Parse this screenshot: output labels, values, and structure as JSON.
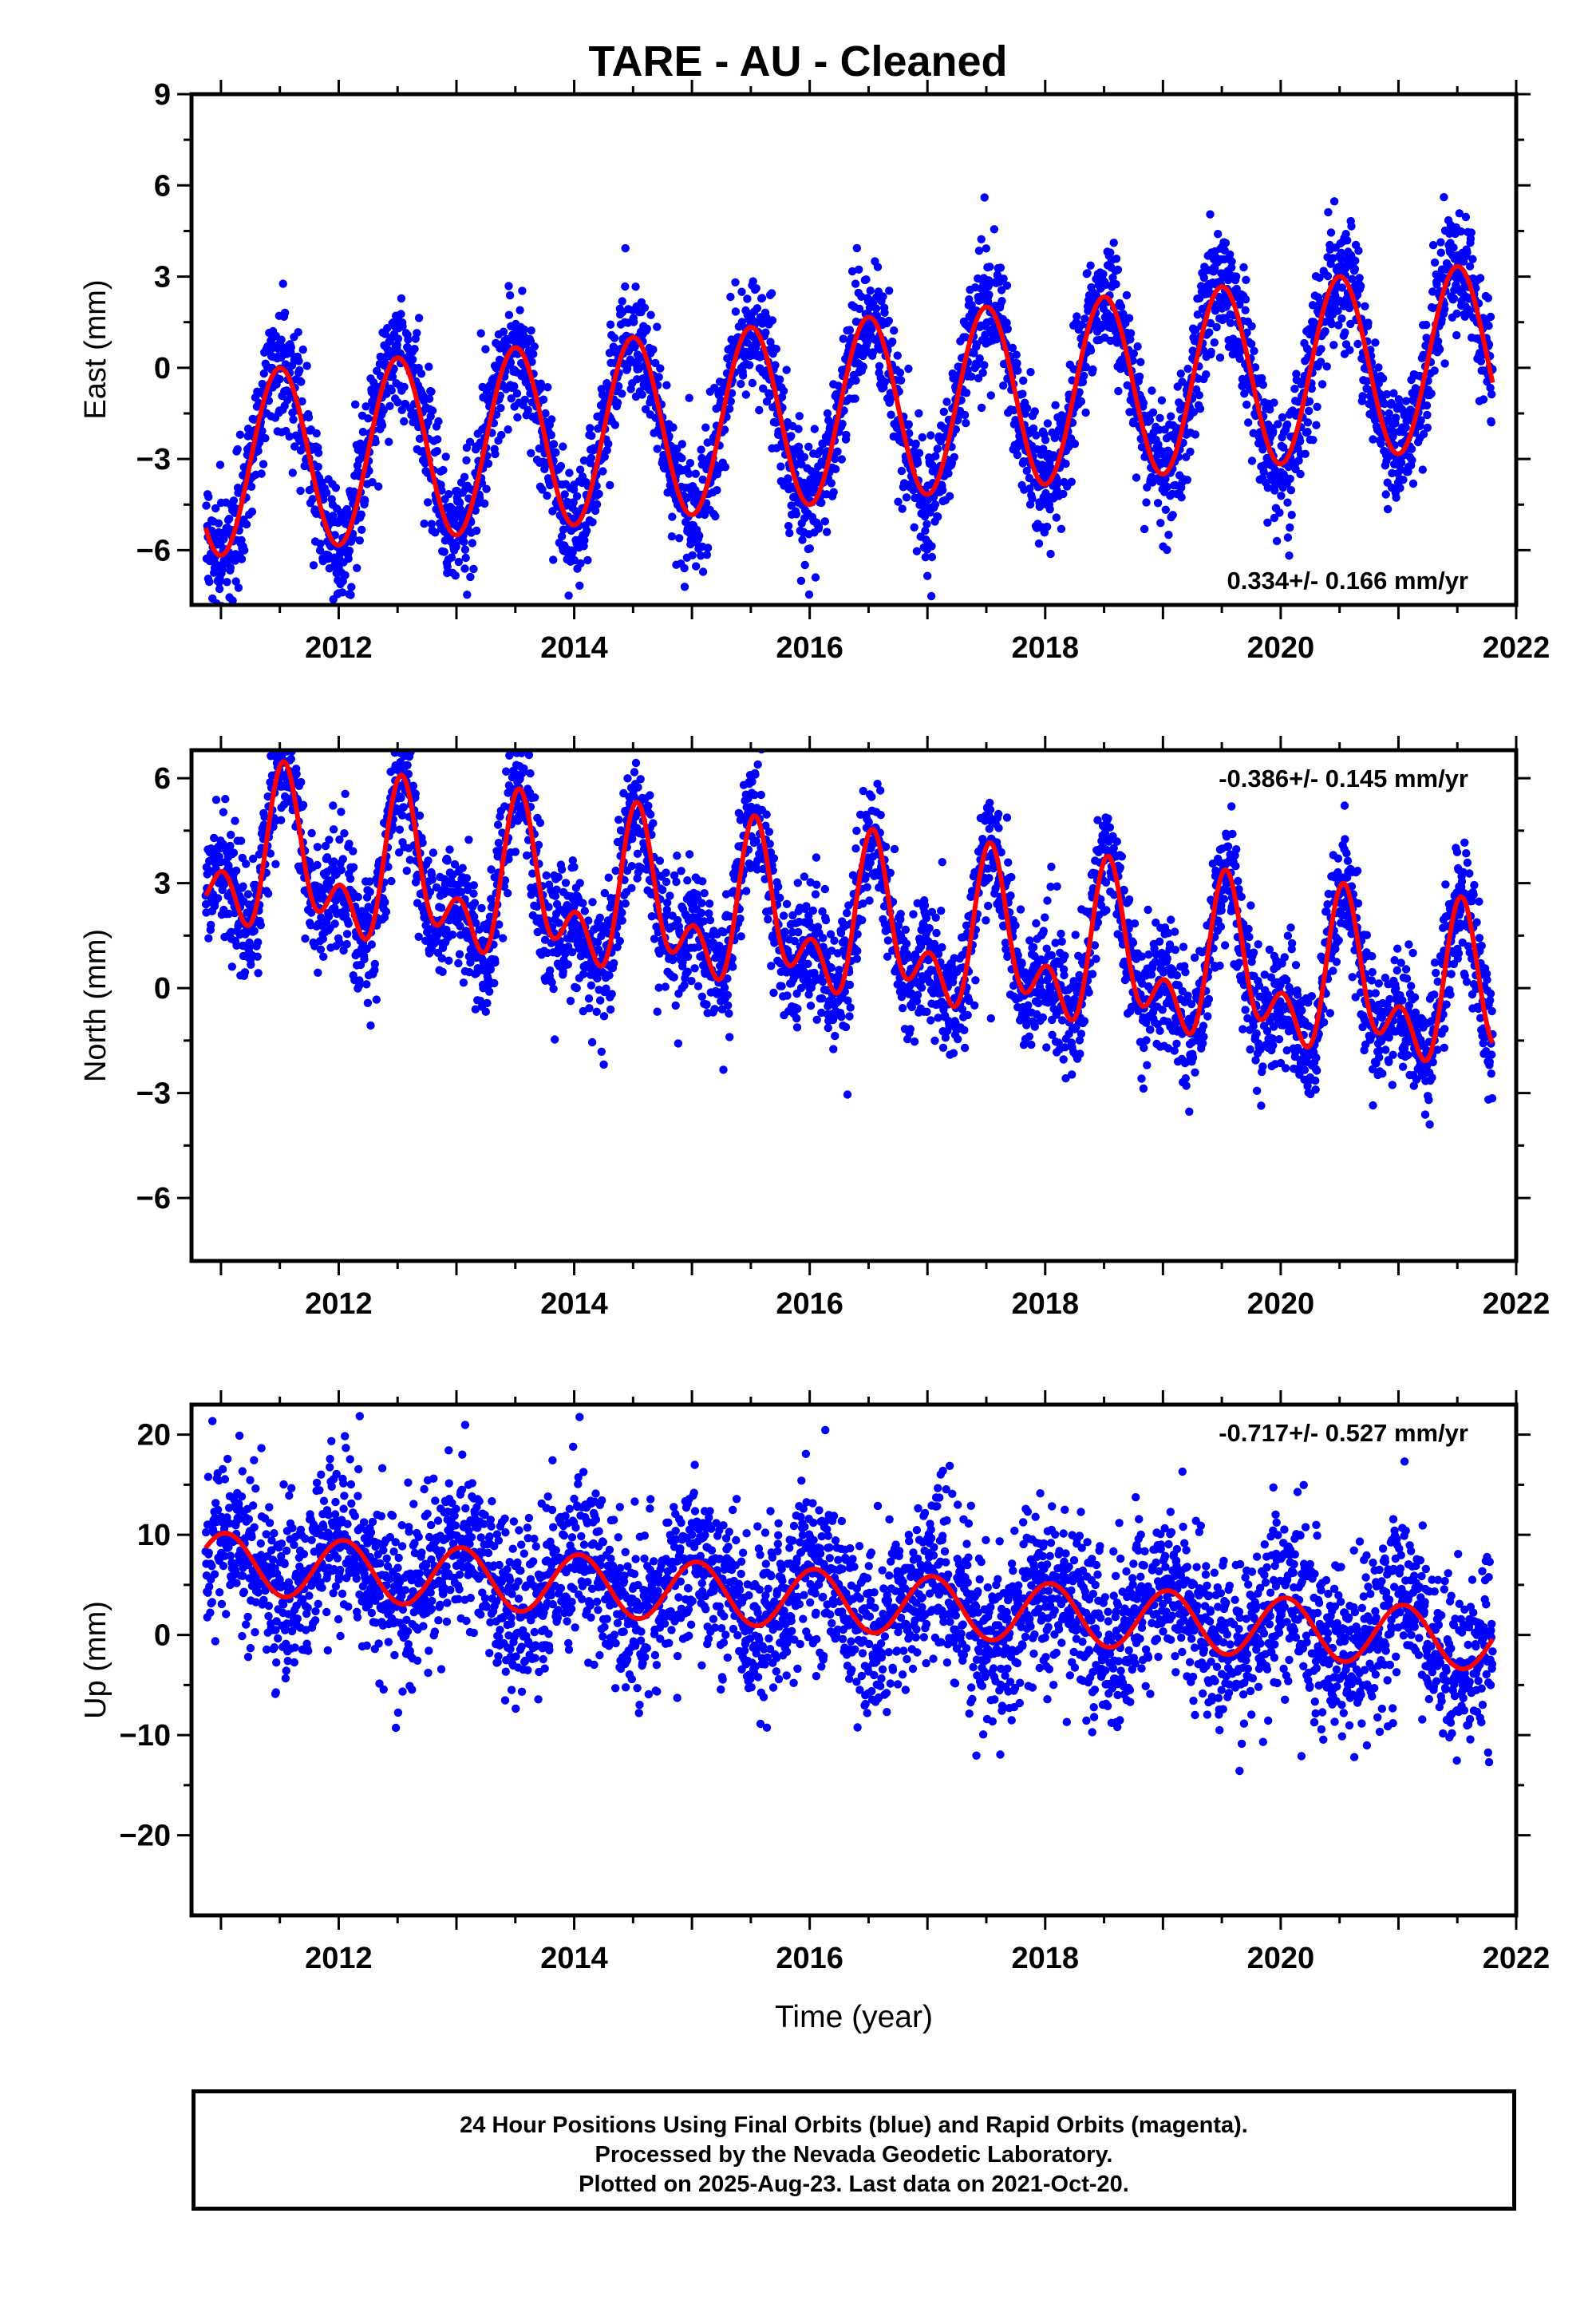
{
  "title": "TARE  - AU - Cleaned",
  "xlabel": "Time (year)",
  "footer": {
    "line1": "24 Hour Positions Using Final Orbits (blue) and Rapid Orbits (magenta).",
    "line2": "Processed by the Nevada Geodetic Laboratory.",
    "line3": "Plotted on 2025-Aug-23. Last data on 2021-Oct-20."
  },
  "colors": {
    "points": "#0000ff",
    "model": "#ff0000",
    "axes": "#000000",
    "background": "#ffffff"
  },
  "chart_data": [
    {
      "type": "scatter",
      "ylabel": "East (mm)",
      "rate_label": "0.334+/- 0.166 mm/yr",
      "rate_position": "bottom-right",
      "xlim": [
        2010.75,
        2022.0
      ],
      "ylim": [
        -7.8,
        9.0
      ],
      "x_ticks": [
        2012,
        2014,
        2016,
        2018,
        2020,
        2022
      ],
      "y_ticks": [
        -6,
        -3,
        0,
        3,
        6,
        9
      ],
      "y_tick_labels": [
        "−6",
        "−3",
        "0",
        "3",
        "6",
        "9"
      ],
      "grid": false,
      "series": [
        {
          "x_start": 2010.87,
          "x_end": 2021.8,
          "rate": 0.334,
          "offset": -1.5,
          "annual_cos": -3.0,
          "annual_sin": 0.0,
          "semiannual_cos": 0.0,
          "semiannual_sin": 0.0,
          "scatter_sd": 1.0,
          "outlier_fraction": 0.004,
          "outlier_sd": 2.5
        }
      ]
    },
    {
      "type": "scatter",
      "ylabel": "North (mm)",
      "rate_label": "-0.386+/- 0.145 mm/yr",
      "rate_position": "top-right",
      "xlim": [
        2010.75,
        2022.0
      ],
      "ylim": [
        -7.8,
        6.8
      ],
      "x_ticks": [
        2012,
        2014,
        2016,
        2018,
        2020,
        2022
      ],
      "y_ticks": [
        -6,
        -3,
        0,
        3,
        6
      ],
      "y_tick_labels": [
        "−6",
        "−3",
        "0",
        "3",
        "6"
      ],
      "grid": false,
      "series": [
        {
          "x_start": 2010.87,
          "x_end": 2021.8,
          "rate": -0.386,
          "offset": 1.8,
          "annual_cos": -1.6,
          "annual_sin": -0.6,
          "semiannual_cos": 1.2,
          "semiannual_sin": 0.4,
          "scatter_sd": 0.9,
          "outlier_fraction": 0.004,
          "outlier_sd": 2.5
        }
      ]
    },
    {
      "type": "scatter",
      "ylabel": "Up (mm)",
      "rate_label": "-0.717+/- 0.527 mm/yr",
      "rate_position": "top-right",
      "xlim": [
        2010.75,
        2022.0
      ],
      "ylim": [
        -28.0,
        23.0
      ],
      "x_ticks": [
        2012,
        2014,
        2016,
        2018,
        2020,
        2022
      ],
      "y_ticks": [
        -20,
        -10,
        0,
        10,
        20
      ],
      "y_tick_labels": [
        "−20",
        "−10",
        "0",
        "10",
        "20"
      ],
      "grid": false,
      "series": [
        {
          "x_start": 2010.87,
          "x_end": 2021.8,
          "rate": -0.717,
          "offset": 3.6,
          "annual_cos": 2.9,
          "annual_sin": 0.8,
          "semiannual_cos": 0.0,
          "semiannual_sin": 0.0,
          "scatter_sd": 4.2,
          "outlier_fraction": 0.004,
          "outlier_sd": 9
        }
      ]
    }
  ]
}
